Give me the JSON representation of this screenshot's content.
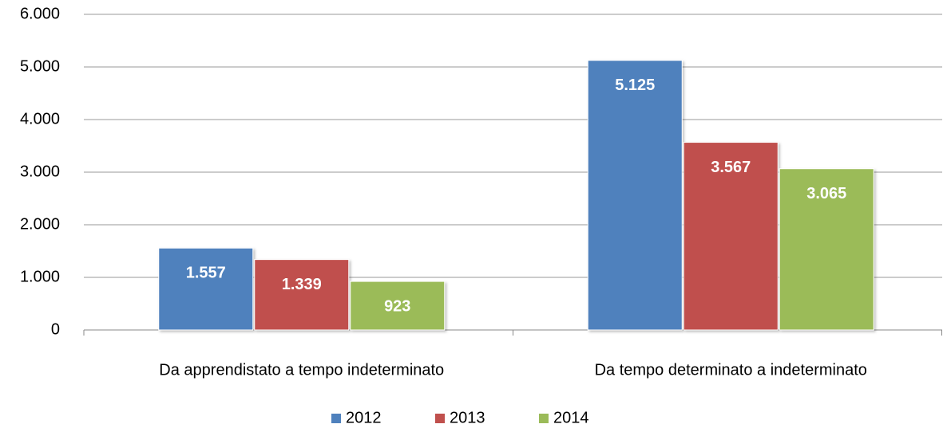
{
  "chart_data": {
    "type": "bar",
    "categories": [
      "Da apprendistato a tempo indeterminato",
      "Da tempo determinato a indeterminato"
    ],
    "series": [
      {
        "name": "2012",
        "color": "#4f81bd",
        "values": [
          1557,
          5125
        ],
        "value_labels": [
          "1.557",
          "5.125"
        ]
      },
      {
        "name": "2013",
        "color": "#c0504d",
        "values": [
          1339,
          3567
        ],
        "value_labels": [
          "1.339",
          "3.567"
        ]
      },
      {
        "name": "2014",
        "color": "#9bbb59",
        "values": [
          923,
          3065
        ],
        "value_labels": [
          "923",
          "3.065"
        ]
      }
    ],
    "ylim": [
      0,
      6000
    ],
    "yticks": [
      0,
      {
        "value": 1000,
        "label": "1.000"
      },
      {
        "value": 2000,
        "label": "2.000"
      },
      {
        "value": 3000,
        "label": "3.000"
      },
      {
        "value": 4000,
        "label": "4.000"
      },
      {
        "value": 5000,
        "label": "5.000"
      },
      {
        "value": 6000,
        "label": "6.000"
      }
    ],
    "grid": true,
    "legend": "bottom"
  }
}
